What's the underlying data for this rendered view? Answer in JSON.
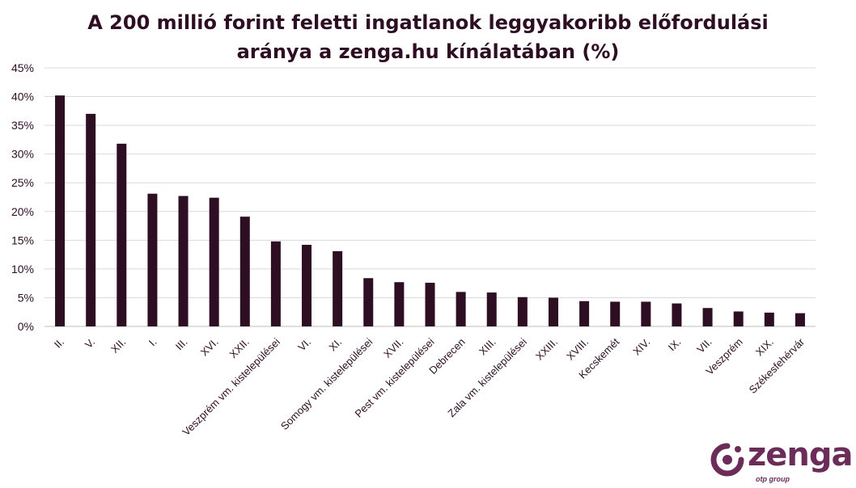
{
  "title": {
    "line1": "A 200 millió forint feletti ingatlanok leggyakoribb előfordulási",
    "line2": "aránya a zenga.hu kínálatában (%)"
  },
  "logo": {
    "word": "zenga",
    "sub": "otp group"
  },
  "colors": {
    "bar": "#2e0e22",
    "grid": "#d9d9d9",
    "text": "#2e0e22",
    "brand": "#6b2c5a"
  },
  "chart_data": {
    "type": "bar",
    "title": "A 200 millió forint feletti ingatlanok leggyakoribb előfordulási aránya a zenga.hu kínálatában (%)",
    "categories": [
      "II.",
      "V.",
      "XII.",
      "I.",
      "III.",
      "XVI.",
      "XXII.",
      "Veszprém vm. kistelepülései",
      "VI.",
      "XI.",
      "Somogy vm. kistelepülései",
      "XVII.",
      "Pest vm. kistelepülései",
      "Debrecen",
      "XIII.",
      "Zala vm. kistelepülései",
      "XXIII.",
      "XVIII.",
      "Kecskemét",
      "XIV.",
      "IX.",
      "VII.",
      "Veszprém",
      "XIX.",
      "Székesfehérvár"
    ],
    "values": [
      40.2,
      37.0,
      31.8,
      23.1,
      22.7,
      22.4,
      19.1,
      14.8,
      14.2,
      13.1,
      8.4,
      7.7,
      7.6,
      6.0,
      5.9,
      5.1,
      5.0,
      4.4,
      4.3,
      4.3,
      4.0,
      3.2,
      2.6,
      2.4,
      2.3
    ],
    "yticks": [
      "0%",
      "5%",
      "10%",
      "15%",
      "20%",
      "25%",
      "30%",
      "35%",
      "40%",
      "45%"
    ],
    "ylim": [
      0,
      45
    ],
    "grid": true,
    "legend": "none"
  }
}
